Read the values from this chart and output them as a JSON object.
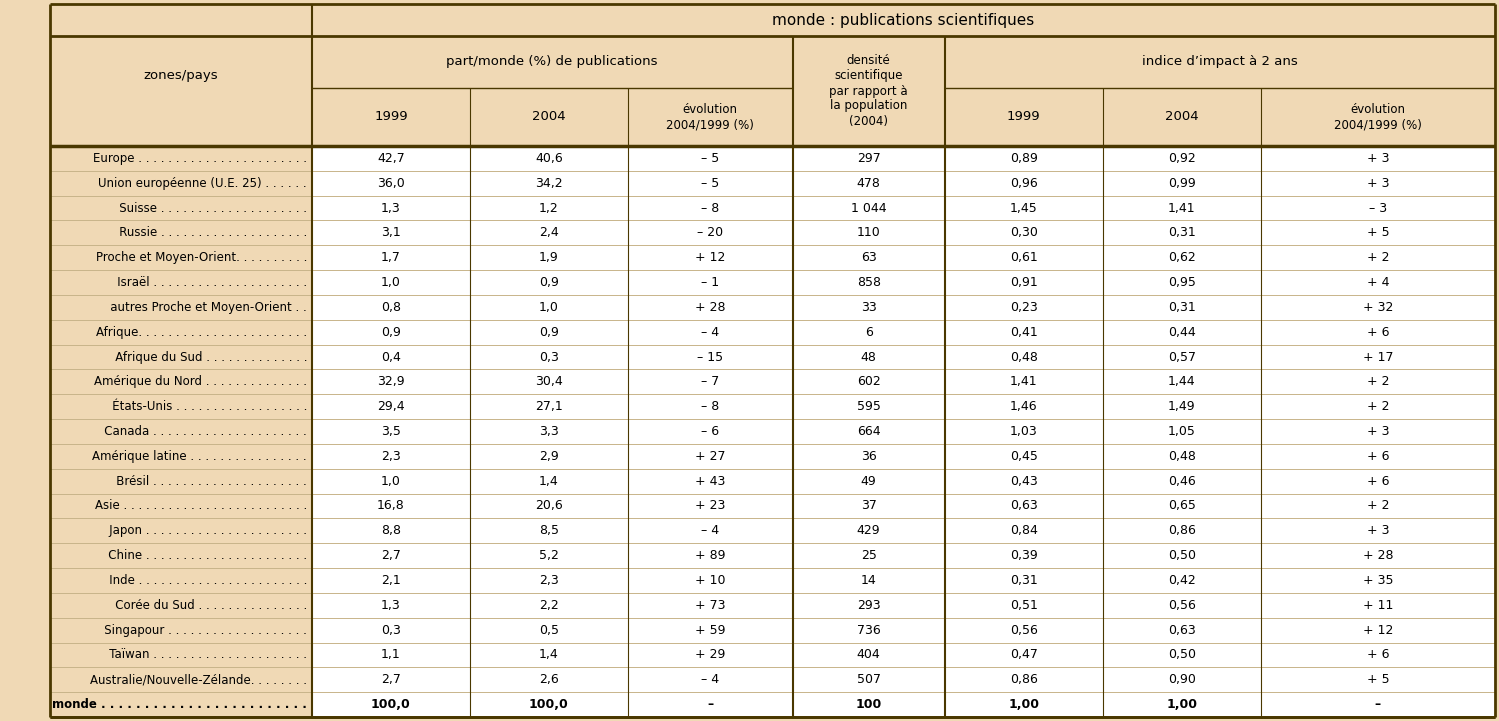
{
  "title": "monde : publications scientifiques",
  "bg_color": "#f0d9b5",
  "white_bg": "#ffffff",
  "border_color": "#4a3800",
  "light_line": "#c8b48a",
  "col_header_1": "zones/pays",
  "col_group_1": "part/monde (%) de publications",
  "col_group_2_line1": "densité",
  "col_group_2_line2": "scientifique",
  "col_group_2_line3": "par rapport à",
  "col_group_2_line4": "la population",
  "col_group_2_line5": "(2004)",
  "col_group_3": "indice d’impact à 2 ans",
  "sub_headers": [
    "1999",
    "2004",
    "évolution\n2004/1999 (%)",
    "1999",
    "2004",
    "évolution\n2004/1999 (%)"
  ],
  "rows": [
    {
      "name": "Europe . . . . . . . . . . . . . . . . . . . . . . .",
      "indent": 0,
      "v1": "42,7",
      "v2": "40,6",
      "v3": "– 5",
      "v4": "297",
      "v5": "0,89",
      "v6": "0,92",
      "v7": "+ 3"
    },
    {
      "name": "Union européenne (U.E. 25) . . . . . .",
      "indent": 0,
      "v1": "36,0",
      "v2": "34,2",
      "v3": "– 5",
      "v4": "478",
      "v5": "0,96",
      "v6": "0,99",
      "v7": "+ 3"
    },
    {
      "name": "   Suisse . . . . . . . . . . . . . . . . . . . .",
      "indent": 1,
      "v1": "1,3",
      "v2": "1,2",
      "v3": "– 8",
      "v4": "1 044",
      "v5": "1,45",
      "v6": "1,41",
      "v7": "– 3"
    },
    {
      "name": "   Russie . . . . . . . . . . . . . . . . . . . .",
      "indent": 1,
      "v1": "3,1",
      "v2": "2,4",
      "v3": "– 20",
      "v4": "110",
      "v5": "0,30",
      "v6": "0,31",
      "v7": "+ 5"
    },
    {
      "name": "Proche et Moyen-Orient. . . . . . . . . .",
      "indent": 0,
      "v1": "1,7",
      "v2": "1,9",
      "v3": "+ 12",
      "v4": "63",
      "v5": "0,61",
      "v6": "0,62",
      "v7": "+ 2"
    },
    {
      "name": "   Israël . . . . . . . . . . . . . . . . . . . . .",
      "indent": 1,
      "v1": "1,0",
      "v2": "0,9",
      "v3": "– 1",
      "v4": "858",
      "v5": "0,91",
      "v6": "0,95",
      "v7": "+ 4"
    },
    {
      "name": "   autres Proche et Moyen-Orient . .",
      "indent": 1,
      "v1": "0,8",
      "v2": "1,0",
      "v3": "+ 28",
      "v4": "33",
      "v5": "0,23",
      "v6": "0,31",
      "v7": "+ 32"
    },
    {
      "name": "Afrique. . . . . . . . . . . . . . . . . . . . . . .",
      "indent": 0,
      "v1": "0,9",
      "v2": "0,9",
      "v3": "– 4",
      "v4": "6",
      "v5": "0,41",
      "v6": "0,44",
      "v7": "+ 6"
    },
    {
      "name": "   Afrique du Sud . . . . . . . . . . . . . .",
      "indent": 1,
      "v1": "0,4",
      "v2": "0,3",
      "v3": "– 15",
      "v4": "48",
      "v5": "0,48",
      "v6": "0,57",
      "v7": "+ 17"
    },
    {
      "name": "Amérique du Nord . . . . . . . . . . . . . .",
      "indent": 0,
      "v1": "32,9",
      "v2": "30,4",
      "v3": "– 7",
      "v4": "602",
      "v5": "1,41",
      "v6": "1,44",
      "v7": "+ 2"
    },
    {
      "name": "   États-Unis . . . . . . . . . . . . . . . . . .",
      "indent": 1,
      "v1": "29,4",
      "v2": "27,1",
      "v3": "– 8",
      "v4": "595",
      "v5": "1,46",
      "v6": "1,49",
      "v7": "+ 2"
    },
    {
      "name": "   Canada . . . . . . . . . . . . . . . . . . . . .",
      "indent": 1,
      "v1": "3,5",
      "v2": "3,3",
      "v3": "– 6",
      "v4": "664",
      "v5": "1,03",
      "v6": "1,05",
      "v7": "+ 3"
    },
    {
      "name": "Amérique latine . . . . . . . . . . . . . . . .",
      "indent": 0,
      "v1": "2,3",
      "v2": "2,9",
      "v3": "+ 27",
      "v4": "36",
      "v5": "0,45",
      "v6": "0,48",
      "v7": "+ 6"
    },
    {
      "name": "   Brésil . . . . . . . . . . . . . . . . . . . . .",
      "indent": 1,
      "v1": "1,0",
      "v2": "1,4",
      "v3": "+ 43",
      "v4": "49",
      "v5": "0,43",
      "v6": "0,46",
      "v7": "+ 6"
    },
    {
      "name": "Asie . . . . . . . . . . . . . . . . . . . . . . . . .",
      "indent": 0,
      "v1": "16,8",
      "v2": "20,6",
      "v3": "+ 23",
      "v4": "37",
      "v5": "0,63",
      "v6": "0,65",
      "v7": "+ 2"
    },
    {
      "name": "   Japon . . . . . . . . . . . . . . . . . . . . . .",
      "indent": 1,
      "v1": "8,8",
      "v2": "8,5",
      "v3": "– 4",
      "v4": "429",
      "v5": "0,84",
      "v6": "0,86",
      "v7": "+ 3"
    },
    {
      "name": "   Chine . . . . . . . . . . . . . . . . . . . . . .",
      "indent": 1,
      "v1": "2,7",
      "v2": "5,2",
      "v3": "+ 89",
      "v4": "25",
      "v5": "0,39",
      "v6": "0,50",
      "v7": "+ 28"
    },
    {
      "name": "   Inde . . . . . . . . . . . . . . . . . . . . . . .",
      "indent": 1,
      "v1": "2,1",
      "v2": "2,3",
      "v3": "+ 10",
      "v4": "14",
      "v5": "0,31",
      "v6": "0,42",
      "v7": "+ 35"
    },
    {
      "name": "   Corée du Sud . . . . . . . . . . . . . . .",
      "indent": 1,
      "v1": "1,3",
      "v2": "2,2",
      "v3": "+ 73",
      "v4": "293",
      "v5": "0,51",
      "v6": "0,56",
      "v7": "+ 11"
    },
    {
      "name": "   Singapour . . . . . . . . . . . . . . . . . . .",
      "indent": 1,
      "v1": "0,3",
      "v2": "0,5",
      "v3": "+ 59",
      "v4": "736",
      "v5": "0,56",
      "v6": "0,63",
      "v7": "+ 12"
    },
    {
      "name": "   Taïwan . . . . . . . . . . . . . . . . . . . . .",
      "indent": 1,
      "v1": "1,1",
      "v2": "1,4",
      "v3": "+ 29",
      "v4": "404",
      "v5": "0,47",
      "v6": "0,50",
      "v7": "+ 6"
    },
    {
      "name": "Australie/Nouvelle-Zélande. . . . . . . .",
      "indent": 0,
      "v1": "2,7",
      "v2": "2,6",
      "v3": "– 4",
      "v4": "507",
      "v5": "0,86",
      "v6": "0,90",
      "v7": "+ 5"
    },
    {
      "name": "monde . . . . . . . . . . . . . . . . . . . . . . . .",
      "indent": 0,
      "bold": true,
      "v1": "100,0",
      "v2": "100,0",
      "v3": "–",
      "v4": "100",
      "v5": "1,00",
      "v6": "1,00",
      "v7": "–"
    }
  ]
}
